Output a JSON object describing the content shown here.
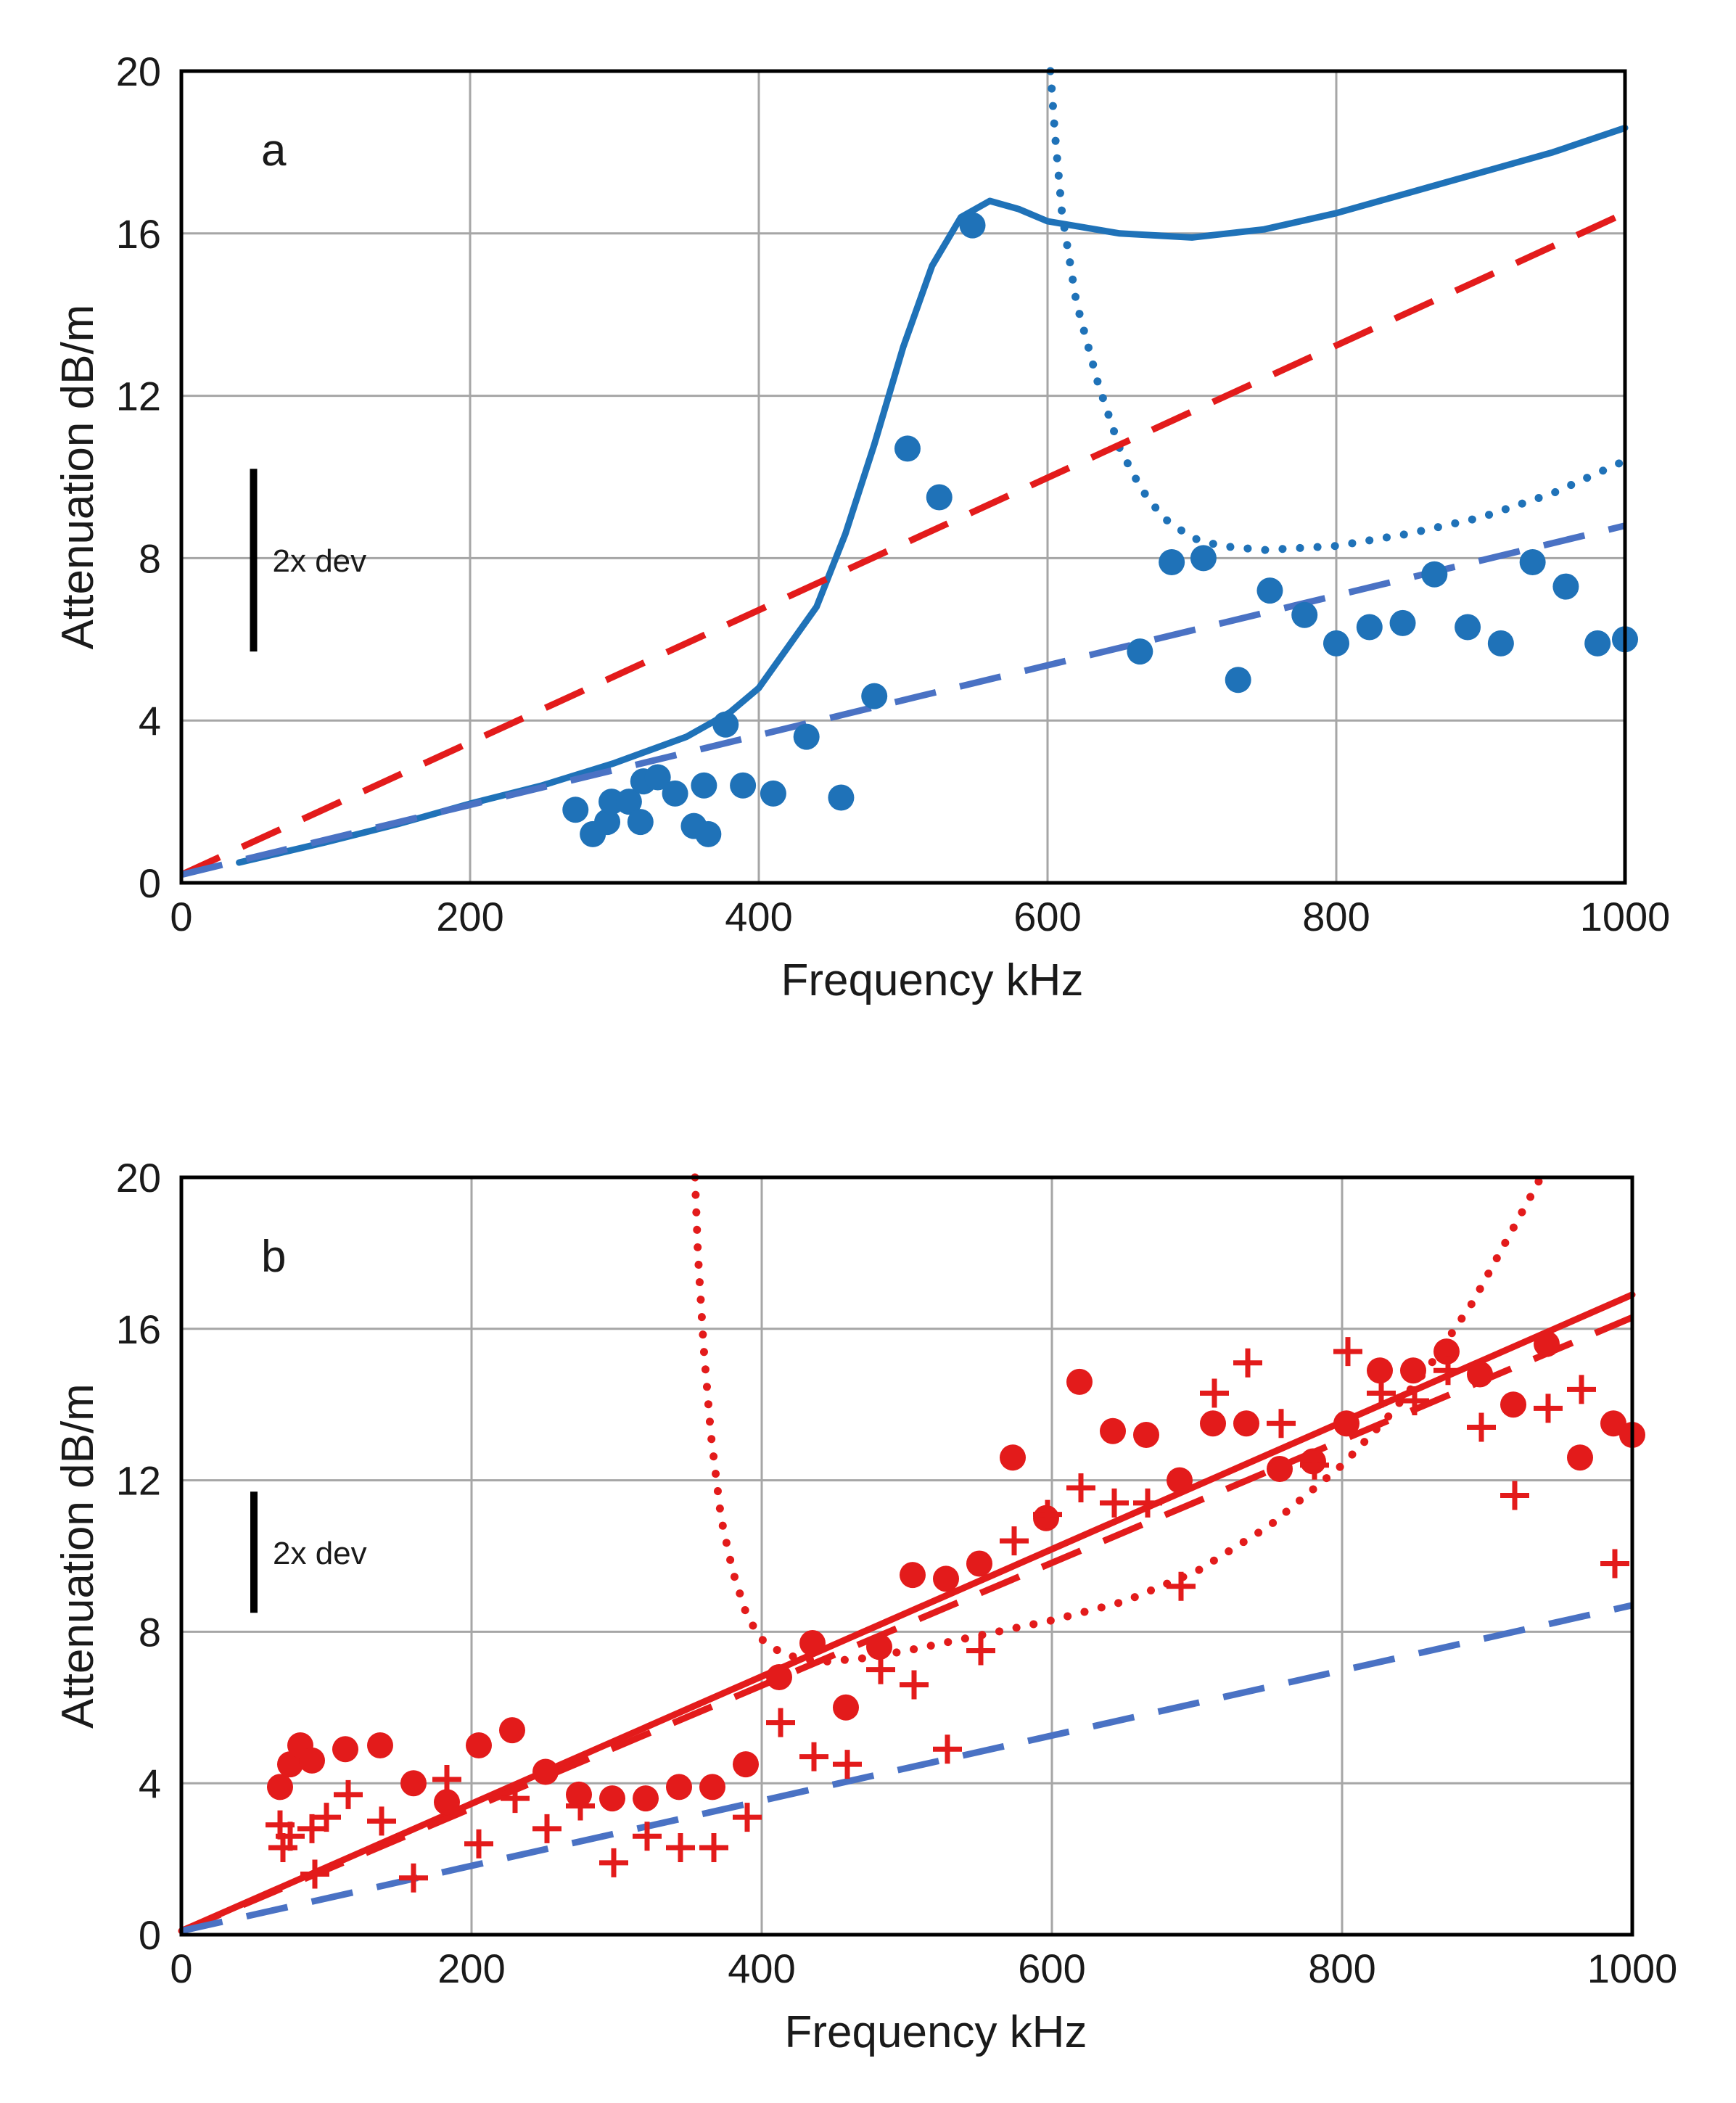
{
  "chart_data": [
    {
      "type": "scatter",
      "panel_label": "a",
      "xlabel": "Frequency  kHz",
      "ylabel": "Attenuation  dB/m",
      "xlim": [
        0,
        1000
      ],
      "ylim": [
        0,
        20
      ],
      "xticks": [
        "0",
        "200",
        "400",
        "600",
        "800",
        "1000"
      ],
      "yticks": [
        "0",
        "4",
        "8",
        "12",
        "16",
        "20"
      ],
      "grid": true,
      "dev_bar": {
        "label": "2x dev",
        "from": 5.7,
        "to": 10.2,
        "x": 50
      },
      "series": [
        {
          "name": "measured points",
          "kind": "dots",
          "color": "#1f72b8",
          "points": [
            [
              273,
              1.8
            ],
            [
              285,
              1.2
            ],
            [
              295,
              1.5
            ],
            [
              298,
              2.0
            ],
            [
              310,
              2.0
            ],
            [
              318,
              1.5
            ],
            [
              320,
              2.5
            ],
            [
              330,
              2.6
            ],
            [
              342,
              2.2
            ],
            [
              355,
              1.4
            ],
            [
              362,
              2.4
            ],
            [
              365,
              1.2
            ],
            [
              377,
              3.9
            ],
            [
              389,
              2.4
            ],
            [
              410,
              2.2
            ],
            [
              433,
              3.6
            ],
            [
              457,
              2.1
            ],
            [
              480,
              4.6
            ],
            [
              503,
              10.7
            ],
            [
              525,
              9.5
            ],
            [
              548,
              16.2
            ],
            [
              664,
              5.7
            ],
            [
              686,
              7.9
            ],
            [
              708,
              8.0
            ],
            [
              732,
              5.0
            ],
            [
              754,
              7.2
            ],
            [
              778,
              6.6
            ],
            [
              800,
              5.9
            ],
            [
              823,
              6.3
            ],
            [
              846,
              6.4
            ],
            [
              868,
              7.6
            ],
            [
              891,
              6.3
            ],
            [
              914,
              5.9
            ],
            [
              936,
              7.9
            ],
            [
              959,
              7.3
            ],
            [
              981,
              5.9
            ],
            [
              1000,
              6.0
            ]
          ]
        },
        {
          "name": "resonance model (solid)",
          "kind": "solid",
          "color": "#1f72b8",
          "points": [
            [
              40,
              0.5
            ],
            [
              100,
              1.0
            ],
            [
              150,
              1.45
            ],
            [
              200,
              1.95
            ],
            [
              250,
              2.4
            ],
            [
              300,
              2.95
            ],
            [
              350,
              3.6
            ],
            [
              380,
              4.2
            ],
            [
              400,
              4.8
            ],
            [
              420,
              5.8
            ],
            [
              440,
              6.8
            ],
            [
              460,
              8.6
            ],
            [
              480,
              10.8
            ],
            [
              500,
              13.2
            ],
            [
              520,
              15.2
            ],
            [
              540,
              16.4
            ],
            [
              560,
              16.8
            ],
            [
              580,
              16.6
            ],
            [
              600,
              16.3
            ],
            [
              650,
              16.0
            ],
            [
              700,
              15.9
            ],
            [
              750,
              16.1
            ],
            [
              800,
              16.5
            ],
            [
              850,
              17.0
            ],
            [
              900,
              17.5
            ],
            [
              950,
              18.0
            ],
            [
              1000,
              18.6
            ]
          ]
        },
        {
          "name": "dotted model",
          "kind": "dotted",
          "color": "#1f72b8",
          "points": [
            [
              602,
              20.0
            ],
            [
              605,
              18.5
            ],
            [
              610,
              16.5
            ],
            [
              620,
              14.3
            ],
            [
              635,
              12.3
            ],
            [
              650,
              10.7
            ],
            [
              665,
              9.7
            ],
            [
              680,
              9.0
            ],
            [
              700,
              8.5
            ],
            [
              720,
              8.3
            ],
            [
              750,
              8.2
            ],
            [
              800,
              8.3
            ],
            [
              850,
              8.6
            ],
            [
              900,
              9.0
            ],
            [
              950,
              9.6
            ],
            [
              1000,
              10.4
            ]
          ]
        },
        {
          "name": "red dashed line",
          "kind": "dashed",
          "color": "#e31b1b",
          "points": [
            [
              0,
              0.2
            ],
            [
              1000,
              16.5
            ]
          ]
        },
        {
          "name": "blue dashed line",
          "kind": "dashed",
          "color": "#4a72c4",
          "points": [
            [
              0,
              0.2
            ],
            [
              1000,
              8.8
            ]
          ]
        }
      ]
    },
    {
      "type": "scatter",
      "panel_label": "b",
      "xlabel": "Frequency  kHz",
      "ylabel": "Attenuation  dB/m",
      "xlim": [
        0,
        1000
      ],
      "ylim": [
        0,
        20
      ],
      "xticks": [
        "0",
        "200",
        "400",
        "600",
        "800",
        "1000"
      ],
      "yticks": [
        "0",
        "4",
        "8",
        "12",
        "16",
        "20"
      ],
      "grid": true,
      "dev_bar": {
        "label": "2x dev",
        "from": 8.5,
        "to": 11.7,
        "x": 50
      },
      "series": [
        {
          "name": "measured points (dots)",
          "kind": "dots",
          "color": "#e31b1b",
          "points": [
            [
              68,
              3.9
            ],
            [
              75,
              4.5
            ],
            [
              82,
              5.0
            ],
            [
              90,
              4.6
            ],
            [
              113,
              4.9
            ],
            [
              137,
              5.0
            ],
            [
              160,
              4.0
            ],
            [
              183,
              3.5
            ],
            [
              205,
              5.0
            ],
            [
              228,
              5.4
            ],
            [
              251,
              4.3
            ],
            [
              274,
              3.7
            ],
            [
              297,
              3.6
            ],
            [
              320,
              3.6
            ],
            [
              343,
              3.9
            ],
            [
              366,
              3.9
            ],
            [
              389,
              4.5
            ],
            [
              412,
              6.8
            ],
            [
              435,
              7.7
            ],
            [
              458,
              6.0
            ],
            [
              481,
              7.6
            ],
            [
              504,
              9.5
            ],
            [
              527,
              9.4
            ],
            [
              550,
              9.8
            ],
            [
              573,
              12.6
            ],
            [
              596,
              11.0
            ],
            [
              619,
              14.6
            ],
            [
              642,
              13.3
            ],
            [
              665,
              13.2
            ],
            [
              688,
              12.0
            ],
            [
              711,
              13.5
            ],
            [
              734,
              13.5
            ],
            [
              757,
              12.3
            ],
            [
              780,
              12.5
            ],
            [
              803,
              13.5
            ],
            [
              826,
              14.9
            ],
            [
              849,
              14.9
            ],
            [
              872,
              15.4
            ],
            [
              895,
              14.8
            ],
            [
              918,
              14.0
            ],
            [
              941,
              15.6
            ],
            [
              964,
              12.6
            ],
            [
              987,
              13.5
            ],
            [
              1000,
              13.2
            ]
          ]
        },
        {
          "name": "measured points (crosses)",
          "kind": "crosses",
          "color": "#e31b1b",
          "points": [
            [
              68,
              2.9
            ],
            [
              70,
              2.3
            ],
            [
              75,
              2.6
            ],
            [
              90,
              2.8
            ],
            [
              92,
              1.6
            ],
            [
              100,
              3.1
            ],
            [
              115,
              3.7
            ],
            [
              138,
              3.0
            ],
            [
              160,
              1.5
            ],
            [
              183,
              4.1
            ],
            [
              205,
              2.4
            ],
            [
              230,
              3.6
            ],
            [
              252,
              2.8
            ],
            [
              275,
              3.4
            ],
            [
              298,
              1.9
            ],
            [
              321,
              2.6
            ],
            [
              344,
              2.3
            ],
            [
              367,
              2.3
            ],
            [
              390,
              3.1
            ],
            [
              413,
              5.6
            ],
            [
              436,
              4.7
            ],
            [
              459,
              4.5
            ],
            [
              482,
              7.0
            ],
            [
              505,
              6.6
            ],
            [
              528,
              4.9
            ],
            [
              551,
              7.5
            ],
            [
              574,
              10.4
            ],
            [
              597,
              11.1
            ],
            [
              620,
              11.8
            ],
            [
              643,
              11.4
            ],
            [
              666,
              11.4
            ],
            [
              689,
              9.2
            ],
            [
              712,
              14.3
            ],
            [
              735,
              15.1
            ],
            [
              758,
              13.5
            ],
            [
              781,
              12.4
            ],
            [
              804,
              15.4
            ],
            [
              827,
              14.3
            ],
            [
              850,
              14.1
            ],
            [
              873,
              14.9
            ],
            [
              896,
              13.4
            ],
            [
              919,
              11.6
            ],
            [
              942,
              13.9
            ],
            [
              965,
              14.4
            ],
            [
              988,
              9.8
            ]
          ]
        },
        {
          "name": "red solid line",
          "kind": "solid",
          "color": "#e31b1b",
          "points": [
            [
              0,
              0.1
            ],
            [
              1000,
              16.9
            ]
          ]
        },
        {
          "name": "red dashed line",
          "kind": "dashed",
          "color": "#e31b1b",
          "points": [
            [
              0,
              0.1
            ],
            [
              1000,
              16.3
            ]
          ]
        },
        {
          "name": "blue dashed line",
          "kind": "dashed",
          "color": "#4a72c4",
          "points": [
            [
              0,
              0.1
            ],
            [
              1000,
              8.7
            ]
          ]
        },
        {
          "name": "dotted model",
          "kind": "dotted",
          "color": "#e31b1b",
          "points": [
            [
              354,
              20.0
            ],
            [
              356,
              18.0
            ],
            [
              360,
              15.5
            ],
            [
              365,
              13.2
            ],
            [
              372,
              11.0
            ],
            [
              380,
              9.6
            ],
            [
              390,
              8.4
            ],
            [
              400,
              7.8
            ],
            [
              415,
              7.4
            ],
            [
              440,
              7.2
            ],
            [
              470,
              7.3
            ],
            [
              500,
              7.5
            ],
            [
              550,
              7.9
            ],
            [
              600,
              8.3
            ],
            [
              650,
              8.8
            ],
            [
              700,
              9.6
            ],
            [
              750,
              10.8
            ],
            [
              800,
              12.4
            ],
            [
              830,
              13.6
            ],
            [
              860,
              15.0
            ],
            [
              890,
              16.7
            ],
            [
              910,
              18.1
            ],
            [
              930,
              19.5
            ],
            [
              937,
              20.0
            ]
          ]
        }
      ]
    }
  ]
}
